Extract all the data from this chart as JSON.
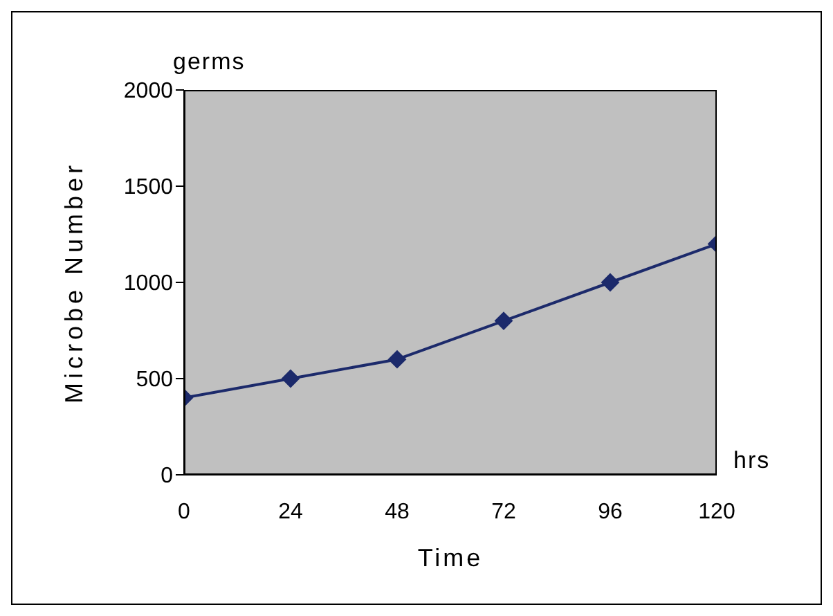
{
  "chart_data": {
    "type": "line",
    "xlabel": "Time",
    "ylabel": "Microbe Number",
    "annotations": [
      "germs",
      "hrs"
    ],
    "x": [
      0,
      24,
      48,
      72,
      96,
      120
    ],
    "series": [
      {
        "color": "#1c2a6b",
        "values": [
          400,
          500,
          600,
          800,
          1000,
          1200
        ]
      }
    ],
    "xlim": [
      0,
      120
    ],
    "xticks": [
      0,
      24,
      48,
      72,
      96,
      120
    ],
    "ylim": [
      0,
      2000
    ],
    "yticks": [
      0,
      500,
      1000,
      1500,
      2000
    ],
    "grid": false,
    "marker": "diamond",
    "line_style": "solid"
  }
}
